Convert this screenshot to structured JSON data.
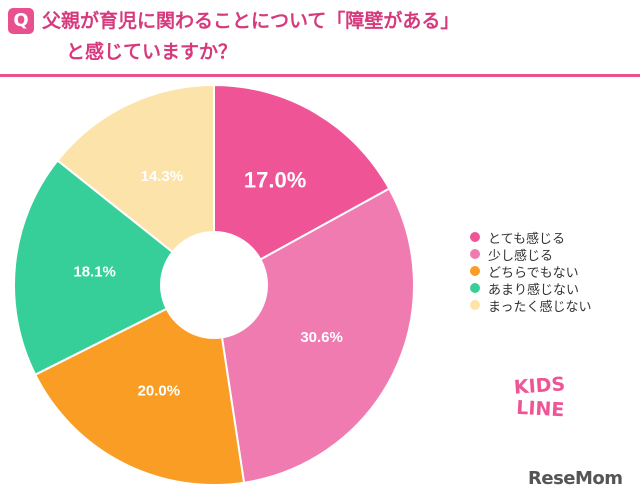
{
  "header": {
    "q_badge": "Q",
    "title_line1": "父親が育児に関わることについて「障壁がある」",
    "title_line2": "と感じていますか？"
  },
  "chart_data": {
    "type": "pie",
    "title": "父親が育児に関わることについて「障壁がある」と感じていますか？",
    "categories": [
      "とても感じる",
      "少し感じる",
      "どちらでもない",
      "あまり感じない",
      "まったく感じない"
    ],
    "values": [
      17.0,
      30.6,
      20.0,
      18.1,
      14.3
    ],
    "labels": [
      "17.0%",
      "30.6%",
      "20.0%",
      "18.1%",
      "14.3%"
    ],
    "colors": [
      "#ef5596",
      "#f07bb1",
      "#f99d24",
      "#36cf9a",
      "#fce3a9"
    ],
    "donut": true,
    "legend_position": "right"
  },
  "brand": {
    "kids_top": "KIDS",
    "kids_bottom": "LINE",
    "resemom": "ReseMom"
  }
}
